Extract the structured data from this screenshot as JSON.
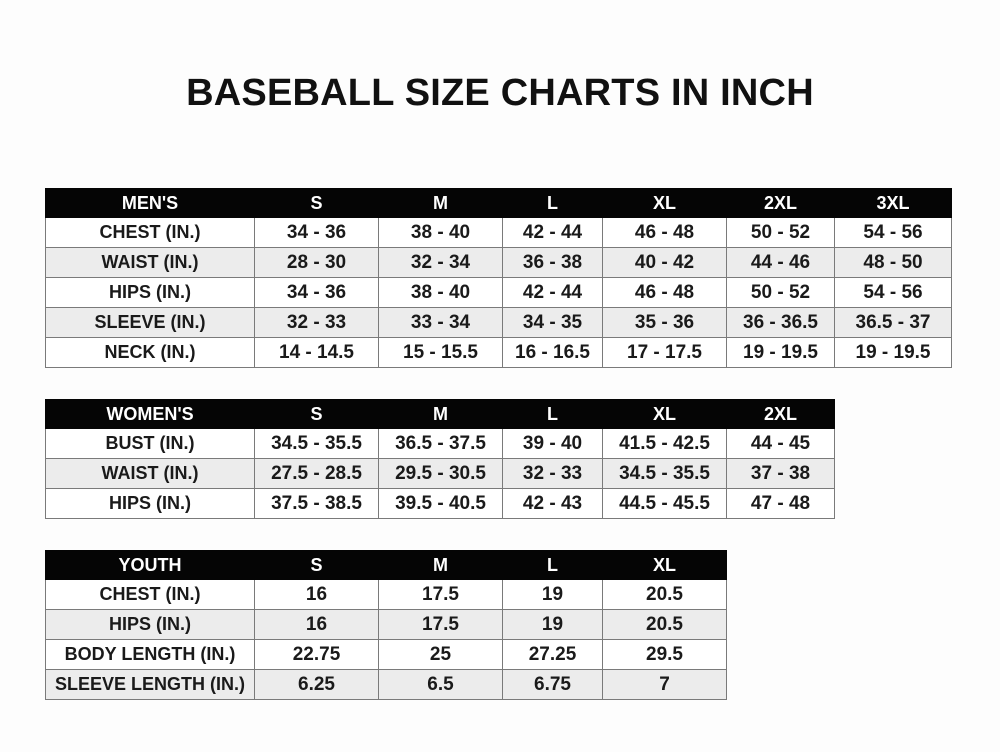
{
  "title": "BASEBALL SIZE CHARTS IN INCH",
  "tables": [
    {
      "name": "men",
      "header": [
        "MEN'S",
        "S",
        "M",
        "L",
        "XL",
        "2XL",
        "3XL"
      ],
      "rows": [
        [
          "CHEST (IN.)",
          "34 - 36",
          "38 - 40",
          "42 - 44",
          "46 - 48",
          "50 - 52",
          "54 - 56"
        ],
        [
          "WAIST (IN.)",
          "28 - 30",
          "32 - 34",
          "36 - 38",
          "40 - 42",
          "44 - 46",
          "48 - 50"
        ],
        [
          "HIPS (IN.)",
          "34 - 36",
          "38 - 40",
          "42 - 44",
          "46 - 48",
          "50 - 52",
          "54 - 56"
        ],
        [
          "SLEEVE (IN.)",
          "32 - 33",
          "33 - 34",
          "34 - 35",
          "35 - 36",
          "36 - 36.5",
          "36.5 - 37"
        ],
        [
          "NECK (IN.)",
          "14 - 14.5",
          "15 - 15.5",
          "16 - 16.5",
          "17 - 17.5",
          "19 - 19.5",
          "19 - 19.5"
        ]
      ]
    },
    {
      "name": "women",
      "header": [
        "WOMEN'S",
        "S",
        "M",
        "L",
        "XL",
        "2XL"
      ],
      "rows": [
        [
          "BUST (IN.)",
          "34.5 - 35.5",
          "36.5 - 37.5",
          "39 - 40",
          "41.5 - 42.5",
          "44 - 45"
        ],
        [
          "WAIST (IN.)",
          "27.5 - 28.5",
          "29.5 - 30.5",
          "32 - 33",
          "34.5 - 35.5",
          "37 - 38"
        ],
        [
          "HIPS (IN.)",
          "37.5 - 38.5",
          "39.5 - 40.5",
          "42 - 43",
          "44.5 - 45.5",
          "47 - 48"
        ]
      ]
    },
    {
      "name": "youth",
      "header": [
        "YOUTH",
        "S",
        "M",
        "L",
        "XL"
      ],
      "rows": [
        [
          "CHEST (IN.)",
          "16",
          "17.5",
          "19",
          "20.5"
        ],
        [
          "HIPS (IN.)",
          "16",
          "17.5",
          "19",
          "20.5"
        ],
        [
          "BODY LENGTH (IN.)",
          "22.75",
          "25",
          "27.25",
          "29.5"
        ],
        [
          "SLEEVE LENGTH (IN.)",
          "6.25",
          "6.5",
          "6.75",
          "7"
        ]
      ]
    }
  ]
}
